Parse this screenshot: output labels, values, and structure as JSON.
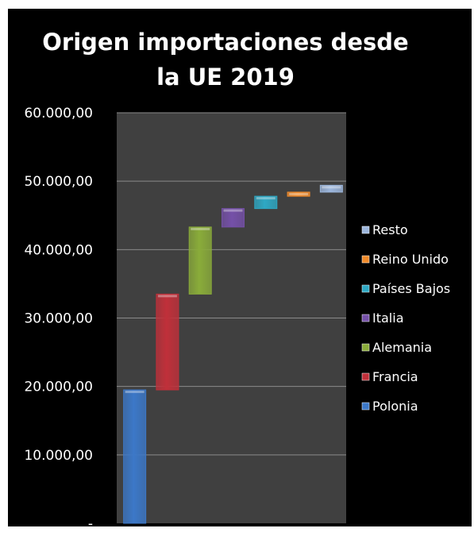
{
  "chart_data": {
    "type": "bar",
    "subtype": "waterfall",
    "title_lines": [
      "Origen importaciones desde",
      "la UE 2019"
    ],
    "categories": [
      "Polonia",
      "Francia",
      "Alemania",
      "Italia",
      "Países Bajos",
      "Reino Unido",
      "Resto"
    ],
    "series": [
      {
        "values": [
          19500,
          14000,
          9800,
          2700,
          1800,
          600,
          1000
        ],
        "starts": [
          0,
          19500,
          33500,
          43300,
          46000,
          47800,
          48400
        ],
        "colors": [
          "#3c78c8",
          "#c0303a",
          "#8aac3a",
          "#7550a8",
          "#2ea8c4",
          "#f08a2a",
          "#9cb6dc"
        ]
      }
    ],
    "ylim": [
      0,
      60000
    ],
    "yticks": [
      0,
      10000,
      20000,
      30000,
      40000,
      50000,
      60000
    ],
    "ytick_labels": [
      "-",
      "10.000,00",
      "20.000,00",
      "30.000,00",
      "40.000,00",
      "50.000,00",
      "60.000,00"
    ],
    "legend": {
      "position": "right",
      "order": [
        "Resto",
        "Reino Unido",
        "Países Bajos",
        "Italia",
        "Alemania",
        "Francia",
        "Polonia"
      ]
    },
    "grid": true,
    "plot_background": "#404040",
    "figure_background": "#000000"
  }
}
